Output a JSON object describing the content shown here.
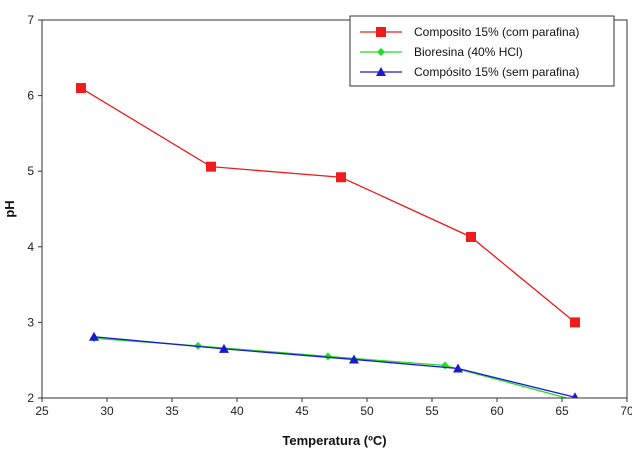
{
  "chart_data": {
    "type": "line",
    "xlabel": "Temperatura (ºC)",
    "ylabel": "pH",
    "xlim": [
      25,
      70
    ],
    "ylim": [
      2,
      7
    ],
    "xticks": [
      25,
      30,
      35,
      40,
      45,
      50,
      55,
      60,
      65,
      70
    ],
    "yticks": [
      2,
      3,
      4,
      5,
      6,
      7
    ],
    "grid": false,
    "legend_position": "top-right",
    "series": [
      {
        "name": "Composito 15% (com parafina)",
        "color": "#ee1c1c",
        "marker": "square",
        "x": [
          28,
          38,
          48,
          58,
          66
        ],
        "y": [
          6.1,
          5.06,
          4.92,
          4.13,
          3.0
        ]
      },
      {
        "name": "Bioresina (40% HCl)",
        "color": "#22dd22",
        "marker": "diamond",
        "x": [
          29,
          37,
          47,
          56,
          66
        ],
        "y": [
          2.79,
          2.69,
          2.55,
          2.43,
          1.97
        ]
      },
      {
        "name": "Compósito 15% (sem parafina)",
        "color": "#1a1acc",
        "marker": "triangle",
        "x": [
          29,
          39,
          49,
          57,
          66
        ],
        "y": [
          2.81,
          2.65,
          2.51,
          2.39,
          2.01
        ]
      }
    ]
  }
}
